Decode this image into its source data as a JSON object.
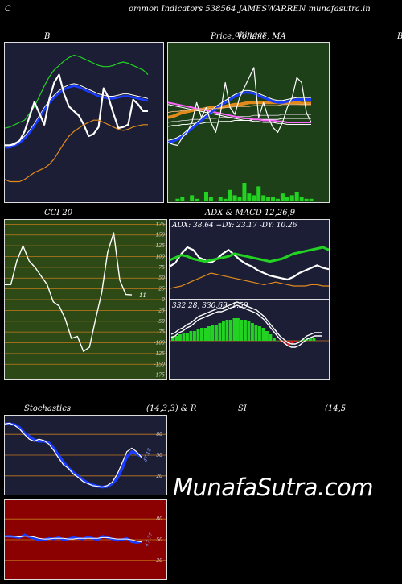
{
  "header": {
    "left_letter": "C",
    "text": "ommon  Indicators 538564  JAMESWARREN  munafasutra.in"
  },
  "titles": {
    "bollinger_letter": "B",
    "price_ma": "Price,  Volume,  MA",
    "price_ma_overlay": "ollinger",
    "right_edge": "B",
    "cci": "CCI 20",
    "adx_macd": "ADX  & MACD 12,26,9",
    "stochastics": "Stochastics",
    "stoch_params": "(14,3,3) & R",
    "rsi": "SI",
    "rsi_params": "(14,5"
  },
  "adx_text": "ADX: 38.64   +DY: 23.17 -DY: 10.26",
  "macd_text": "332.28,  330.69,  1.59",
  "cci_last_label": "11",
  "stoch_last_label": "47.18",
  "rsi_last_label": "47.77",
  "watermark": "MunafaSutra.com",
  "colors": {
    "navy_bg": "#1c1e36",
    "green_bg": "#1d4018",
    "olive_bg": "#2d4a16",
    "red_bg": "#8b0000",
    "grid_orange": "#c27a1c",
    "line_white": "#ffffff",
    "line_blue": "#1a3cff",
    "line_green": "#22d322",
    "line_orange": "#e08a1c",
    "line_pink": "#ff66ff"
  },
  "chart_data": [
    {
      "type": "line",
      "name": "bollinger",
      "series": [
        {
          "name": "upper",
          "color": "#22d322",
          "values": [
            165,
            166,
            168,
            170,
            172,
            178,
            184,
            193,
            202,
            210,
            216,
            220,
            224,
            227,
            229,
            228,
            226,
            224,
            222,
            220,
            219,
            219,
            220,
            222,
            223,
            222,
            220,
            218,
            216,
            212
          ]
        },
        {
          "name": "middle",
          "color": "#1a3cff",
          "values": [
            148,
            148,
            150,
            152,
            156,
            161,
            167,
            174,
            181,
            187,
            192,
            196,
            199,
            201,
            202,
            201,
            199,
            197,
            195,
            193,
            192,
            191,
            191,
            192,
            193,
            193,
            192,
            191,
            190,
            189
          ]
        },
        {
          "name": "close",
          "color": "#ffffff",
          "values": [
            150,
            150,
            151,
            154,
            162,
            175,
            188,
            178,
            168,
            190,
            205,
            212,
            195,
            184,
            180,
            176,
            168,
            158,
            160,
            166,
            200,
            192,
            178,
            165,
            166,
            168,
            190,
            186,
            180,
            180
          ]
        },
        {
          "name": "lower",
          "color": "#e08a1c",
          "values": [
            120,
            118,
            118,
            118,
            120,
            123,
            126,
            128,
            130,
            133,
            138,
            145,
            152,
            158,
            162,
            165,
            168,
            170,
            172,
            172,
            170,
            168,
            166,
            164,
            163,
            164,
            166,
            167,
            168,
            168
          ]
        }
      ]
    },
    {
      "type": "line",
      "name": "price_volume_ma",
      "series": [
        {
          "name": "price",
          "values": [
            150,
            148,
            147,
            155,
            160,
            170,
            190,
            175,
            185,
            170,
            160,
            180,
            210,
            185,
            178,
            195,
            205,
            215,
            225,
            175,
            190,
            175,
            165,
            160,
            170,
            185,
            195,
            215,
            210,
            180,
            170
          ]
        },
        {
          "name": "ma_long",
          "values": [
            180,
            181,
            181,
            182,
            182,
            183,
            183,
            183,
            184,
            184,
            184,
            185,
            185,
            185,
            186,
            186,
            186,
            186,
            187,
            187,
            187,
            187,
            187,
            187,
            188,
            188,
            188,
            188,
            188,
            188,
            188
          ]
        },
        {
          "name": "ma_mid",
          "values": [
            175,
            176,
            178,
            180,
            181,
            182,
            183,
            183,
            184,
            185,
            185,
            185,
            186,
            187,
            188,
            188,
            189,
            190,
            190,
            190,
            190,
            190,
            190,
            190,
            190,
            190,
            190,
            190,
            189,
            189,
            189
          ]
        },
        {
          "name": "ma_blue",
          "values": [
            150,
            151,
            153,
            156,
            160,
            164,
            168,
            172,
            176,
            180,
            184,
            187,
            190,
            193,
            196,
            198,
            200,
            200,
            199,
            197,
            195,
            193,
            191,
            190,
            190,
            191,
            192,
            193,
            193,
            193,
            193
          ]
        },
        {
          "name": "ma_pink",
          "values": [
            190,
            189,
            188,
            187,
            186,
            185,
            184,
            183,
            182,
            181,
            180,
            179,
            178,
            177,
            176,
            175,
            174,
            174,
            173,
            173,
            172,
            172,
            172,
            171,
            171,
            170,
            170,
            170,
            170,
            170,
            170
          ]
        },
        {
          "name": "volume",
          "values": [
            0,
            0,
            1,
            2,
            0,
            3,
            1,
            0,
            5,
            2,
            0,
            2,
            1,
            6,
            3,
            2,
            10,
            4,
            3,
            8,
            3,
            2,
            2,
            1,
            4,
            2,
            3,
            5,
            2,
            1,
            1
          ]
        }
      ]
    },
    {
      "type": "line",
      "name": "cci",
      "ylim": [
        -175,
        175
      ],
      "ticks": [
        175,
        150,
        125,
        100,
        75,
        50,
        25,
        0,
        -25,
        -50,
        -75,
        -100,
        -125,
        -150,
        -175
      ],
      "values": [
        35,
        35,
        90,
        125,
        90,
        75,
        55,
        35,
        -5,
        -15,
        -45,
        -90,
        -85,
        -120,
        -110,
        -45,
        15,
        110,
        155,
        45,
        12,
        11
      ]
    },
    {
      "type": "line",
      "name": "adx",
      "series": [
        {
          "name": "adx",
          "values": [
            30,
            32,
            34,
            33,
            31,
            30,
            29,
            30,
            31,
            32,
            33,
            35,
            34,
            33,
            32,
            31,
            30,
            29,
            30,
            31,
            33,
            35,
            36,
            37,
            38,
            39,
            40,
            38
          ]
        },
        {
          "name": "plus_dy",
          "values": [
            25,
            28,
            35,
            40,
            38,
            32,
            30,
            28,
            31,
            35,
            38,
            34,
            30,
            27,
            25,
            22,
            20,
            18,
            17,
            16,
            15,
            17,
            20,
            22,
            24,
            26,
            24,
            23
          ]
        },
        {
          "name": "minus_dy",
          "values": [
            8,
            9,
            10,
            12,
            14,
            16,
            18,
            20,
            19,
            18,
            17,
            16,
            15,
            14,
            13,
            12,
            11,
            12,
            13,
            12,
            11,
            10,
            10,
            10,
            11,
            11,
            10,
            10
          ]
        }
      ]
    },
    {
      "type": "bar",
      "name": "macd",
      "series": [
        {
          "name": "histogram",
          "values": [
            3,
            3,
            4,
            5,
            5,
            6,
            6,
            7,
            8,
            8,
            9,
            10,
            10,
            11,
            12,
            13,
            13,
            14,
            14,
            13,
            13,
            12,
            11,
            10,
            9,
            8,
            6,
            4,
            2,
            0,
            -1,
            -2,
            -3,
            -2,
            -1,
            0,
            1,
            1,
            2,
            2
          ]
        },
        {
          "name": "macd",
          "values": [
            2,
            3,
            5,
            6,
            8,
            9,
            11,
            13,
            14,
            15,
            16,
            17,
            18,
            18,
            19,
            20,
            21,
            22,
            21,
            20,
            19,
            18,
            17,
            15,
            13,
            10,
            7,
            4,
            1,
            -1,
            -3,
            -4,
            -4,
            -3,
            -1,
            1,
            2,
            3,
            3,
            3
          ]
        }
      ]
    },
    {
      "type": "line",
      "name": "stochastics",
      "ylim": [
        0,
        100
      ],
      "ticks": [
        80,
        50,
        20
      ],
      "series": [
        {
          "name": "k",
          "values": [
            95,
            96,
            93,
            88,
            80,
            73,
            70,
            73,
            71,
            66,
            57,
            46,
            36,
            31,
            23,
            18,
            12,
            9,
            6,
            5,
            4,
            6,
            11,
            22,
            38,
            55,
            60,
            55,
            47
          ]
        },
        {
          "name": "d",
          "values": [
            95,
            95,
            94,
            90,
            82,
            77,
            72,
            70,
            70,
            68,
            60,
            50,
            40,
            32,
            25,
            20,
            14,
            10,
            7,
            5,
            4,
            5,
            9,
            16,
            30,
            48,
            55,
            52,
            48
          ]
        }
      ]
    },
    {
      "type": "line",
      "name": "rsi",
      "ylim": [
        0,
        100
      ],
      "ticks": [
        80,
        50,
        20
      ],
      "series": [
        {
          "name": "rsi",
          "values": [
            55,
            55,
            54,
            53,
            57,
            54,
            52,
            49,
            50,
            52,
            51,
            53,
            50,
            51,
            53,
            52,
            51,
            54,
            52,
            50,
            55,
            53,
            51,
            49,
            50,
            52,
            47,
            46,
            47
          ]
        },
        {
          "name": "ma",
          "values": [
            55,
            55,
            55,
            54,
            55,
            55,
            54,
            52,
            51,
            51,
            52,
            52,
            52,
            51,
            51,
            52,
            52,
            52,
            52,
            52,
            53,
            53,
            52,
            51,
            51,
            51,
            50,
            48,
            47
          ]
        }
      ]
    }
  ]
}
